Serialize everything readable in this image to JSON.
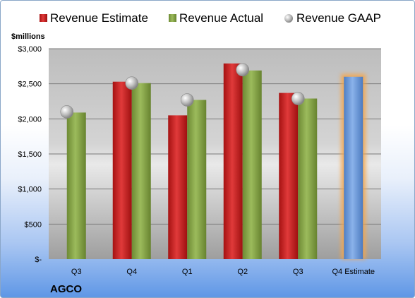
{
  "chart_data": {
    "type": "bar",
    "company": "AGCO",
    "unit_label": "$millions",
    "categories": [
      "Q3",
      "Q4",
      "Q1",
      "Q2",
      "Q3",
      "Q4 Estimate"
    ],
    "y_ticks": [
      "$-",
      "$500",
      "$1,000",
      "$1,500",
      "$2,000",
      "$2,500",
      "$3,000"
    ],
    "ylim": [
      0,
      3000
    ],
    "grid": true,
    "legend_position": "top",
    "series": [
      {
        "name": "Revenue Estimate",
        "kind": "bar",
        "color": "#cc1f1f",
        "values": [
          null,
          2530,
          2050,
          2790,
          2370,
          null
        ]
      },
      {
        "name": "Revenue Actual",
        "kind": "bar",
        "color": "#8aa84a",
        "values": [
          2090,
          2510,
          2270,
          2690,
          2290,
          null
        ]
      },
      {
        "name": "Revenue GAAP",
        "kind": "marker",
        "color": "#b8b8b8",
        "values": [
          2100,
          2510,
          2270,
          2700,
          2290,
          null
        ]
      },
      {
        "name": "",
        "kind": "bar",
        "color": "#6f9bd8",
        "highlight": "#f5a54a",
        "values": [
          null,
          null,
          null,
          null,
          null,
          2600
        ]
      }
    ]
  }
}
